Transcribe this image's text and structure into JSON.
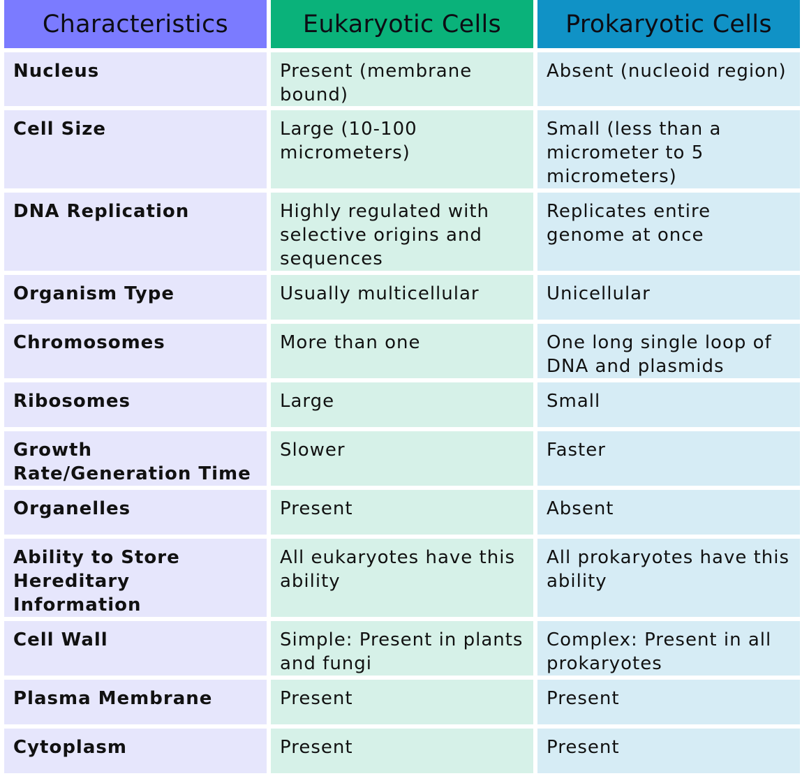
{
  "colors": {
    "header": [
      "#7b7bff",
      "#0ab27a",
      "#1092c6"
    ],
    "body": [
      "#e6e6fc",
      "#d6f1e8",
      "#d6ecf5"
    ]
  },
  "table": {
    "headers": [
      "Characteristics",
      "Eukaryotic Cells",
      "Prokaryotic Cells"
    ],
    "rows": [
      [
        "Nucleus",
        "Present (membrane bound)",
        "Absent (nucleoid region)"
      ],
      [
        "Cell Size",
        "Large (10-100 micrometers)",
        "Small (less than a micrometer to 5 micrometers)"
      ],
      [
        "DNA Replication",
        "Highly regulated with selective origins and sequences",
        "Replicates entire genome at once"
      ],
      [
        "Organism Type",
        "Usually multicellular",
        "Unicellular"
      ],
      [
        "Chromosomes",
        "More than one",
        "One long single loop of DNA and plasmids"
      ],
      [
        "Ribosomes",
        "Large",
        "Small"
      ],
      [
        "Growth Rate/Generation Time",
        "Slower",
        "Faster"
      ],
      [
        "Organelles",
        "Present",
        "Absent"
      ],
      [
        "Ability to Store Hereditary Information",
        "All eukaryotes have this ability",
        "All prokaryotes have this ability"
      ],
      [
        "Cell Wall",
        "Simple: Present in plants and fungi",
        "Complex: Present in all prokaryotes"
      ],
      [
        "Plasma Membrane",
        "Present",
        "Present"
      ],
      [
        "Cytoplasm",
        "Present",
        "Present"
      ]
    ]
  }
}
